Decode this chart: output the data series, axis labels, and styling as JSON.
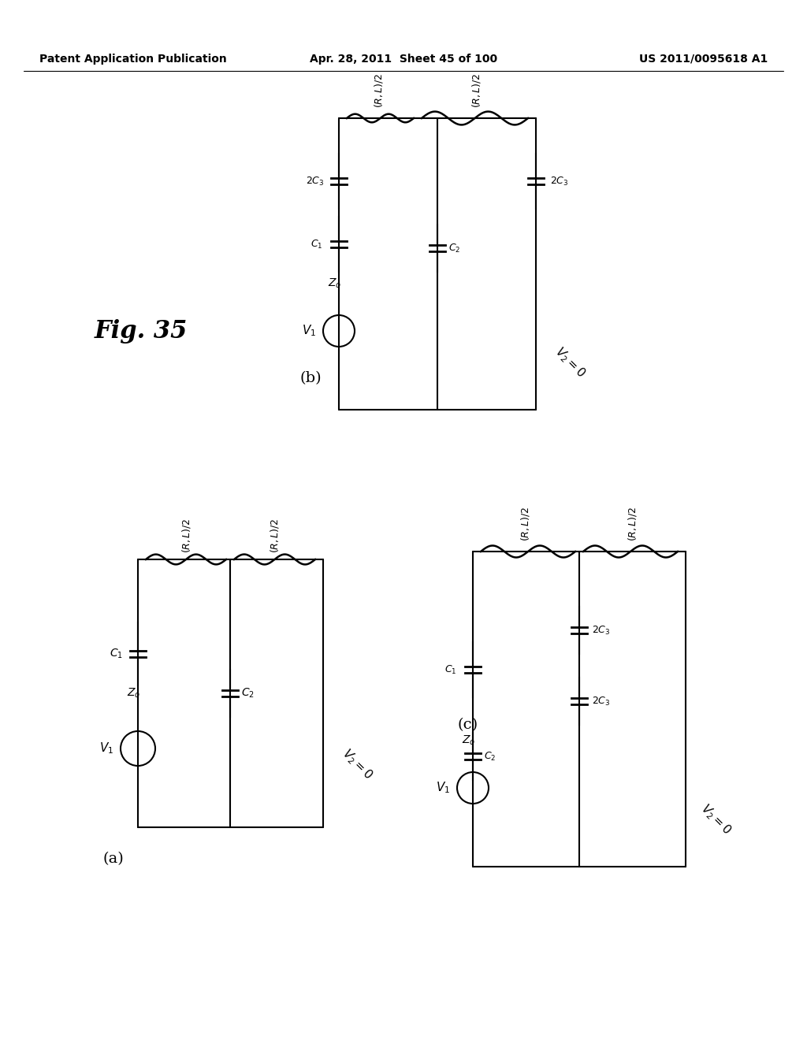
{
  "bg_color": "#ffffff",
  "header_left": "Patent Application Publication",
  "header_mid": "Apr. 28, 2011  Sheet 45 of 100",
  "header_right": "US 2011/0095618 A1",
  "fig_label": "Fig. 35",
  "sub_a": "(a)",
  "sub_b": "(b)",
  "sub_c": "(c)"
}
